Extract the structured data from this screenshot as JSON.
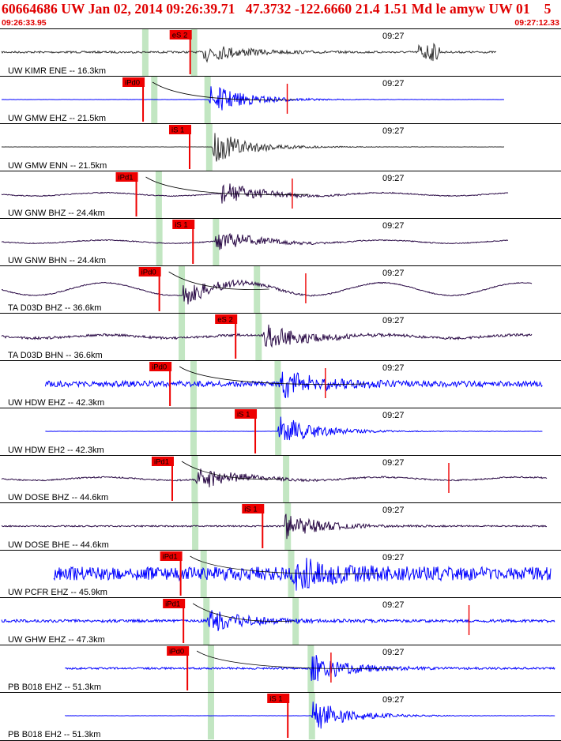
{
  "header": {
    "title": "60664686 UW Jan 02, 2014 09:26:39.71   47.3732 -122.6660 21.4 1.51 Md le amyw UW 01    5",
    "start_time": "09:26:33.95",
    "end_time": "09:27:12.33"
  },
  "minute_label": "09:27",
  "colors": {
    "header": "#e00000",
    "pick": "#ee0000",
    "highlight": "#c2e6c2",
    "trace_gray": "#333333",
    "trace_blue": "#0000ff",
    "trace_purple": "#2a0a46"
  },
  "traces": [
    {
      "label": "UW KIMR ENE -- 16.3km",
      "color": "gray",
      "pick": {
        "text": "eS 2",
        "t": 0.339
      },
      "highlights": [
        0.259,
        0.346
      ],
      "extent": [
        0.0,
        0.885
      ],
      "burst": 0.362,
      "amp": 0.22,
      "noise": 0.04,
      "swell": 0.0,
      "second": 0.765
    },
    {
      "label": "UW GMW EHZ -- 21.5km",
      "color": "blue",
      "pick": {
        "text": "iPd0",
        "t": 0.255
      },
      "highlights": [
        0.275,
        0.37
      ],
      "extent": [
        0.0,
        0.899
      ],
      "burst": 0.372,
      "amp": 0.34,
      "noise": 0.005,
      "swell": 0.0,
      "red_mark": 0.512
    },
    {
      "label": "UW GMW ENN -- 21.5km",
      "color": "gray",
      "pick": {
        "text": "iS 1",
        "t": 0.338
      },
      "highlights": [
        0.373
      ],
      "extent": [
        0.0,
        0.899
      ],
      "burst": 0.378,
      "amp": 0.36,
      "noise": 0.005,
      "swell": 0.0
    },
    {
      "label": "UW GNW BHZ -- 24.4km",
      "color": "purple",
      "pick": {
        "text": "iPd1",
        "t": 0.243
      },
      "highlights": [
        0.283
      ],
      "extent": [
        0.0,
        0.907
      ],
      "burst": 0.395,
      "amp": 0.25,
      "noise": 0.02,
      "swell": 0.05,
      "red_mark": 0.521
    },
    {
      "label": "UW GNW BHN -- 24.4km",
      "color": "purple",
      "pick": {
        "text": "iS 1",
        "t": 0.344
      },
      "highlights": [
        0.284,
        0.385
      ],
      "extent": [
        0.0,
        0.907
      ],
      "burst": 0.384,
      "amp": 0.24,
      "noise": 0.02,
      "swell": 0.05
    },
    {
      "label": "TA D03D BHZ -- 36.6km",
      "color": "purple",
      "pick": {
        "text": "iPd0",
        "t": 0.284
      },
      "highlights": [
        0.324,
        0.458
      ],
      "extent": [
        0.0,
        0.948
      ],
      "burst": 0.325,
      "amp": 0.25,
      "noise": 0.02,
      "swell": 0.2,
      "red_mark": 0.545
    },
    {
      "label": "TA D03D BHN -- 36.6km",
      "color": "purple",
      "pick": {
        "text": "eS 2",
        "t": 0.42
      },
      "highlights": [
        0.324,
        0.461
      ],
      "extent": [
        0.0,
        0.948
      ],
      "burst": 0.47,
      "amp": 0.28,
      "noise": 0.05,
      "swell": 0.05
    },
    {
      "label": "UW HDW EHZ -- 42.3km",
      "color": "blue",
      "pick": {
        "text": "iPd0",
        "t": 0.303
      },
      "highlights": [
        0.345,
        0.495
      ],
      "extent": [
        0.078,
        0.968
      ],
      "burst": 0.497,
      "amp": 0.3,
      "noise": 0.12,
      "swell": 0.0,
      "red_mark": 0.58
    },
    {
      "label": "UW HDW EH2 -- 42.3km",
      "color": "blue",
      "pick": {
        "text": "iS 1",
        "t": 0.455
      },
      "highlights": [
        0.345,
        0.496
      ],
      "extent": [
        0.078,
        0.968
      ],
      "burst": 0.496,
      "amp": 0.36,
      "noise": 0.005,
      "swell": 0.0
    },
    {
      "label": "UW DOSE BHZ -- 44.6km",
      "color": "purple",
      "pick": {
        "text": "iPd1",
        "t": 0.307
      },
      "highlights": [
        0.347,
        0.51
      ],
      "extent": [
        0.0,
        0.975
      ],
      "burst": 0.348,
      "amp": 0.25,
      "noise": 0.03,
      "swell": 0.05,
      "red_mark": 0.8
    },
    {
      "label": "UW DOSE BHE -- 44.6km",
      "color": "purple",
      "pick": {
        "text": "iS 1",
        "t": 0.468
      },
      "highlights": [
        0.348,
        0.513
      ],
      "extent": [
        0.0,
        0.975
      ],
      "burst": 0.508,
      "amp": 0.27,
      "noise": 0.03,
      "swell": 0.0
    },
    {
      "label": "UW PCFR EHZ -- 45.9km",
      "color": "blue",
      "pick": {
        "text": "iPd1",
        "t": 0.322
      },
      "highlights": [
        0.363,
        0.519
      ],
      "extent": [
        0.093,
        0.982
      ],
      "burst": 0.52,
      "amp": 0.3,
      "noise": 0.28,
      "swell": 0.0
    },
    {
      "label": "UW GHW EHZ -- 47.3km",
      "color": "blue",
      "pick": {
        "text": "iPd1",
        "t": 0.327
      },
      "highlights": [
        0.368,
        0.527
      ],
      "extent": [
        0.0,
        0.99
      ],
      "burst": 0.37,
      "amp": 0.25,
      "noise": 0.06,
      "swell": 0.0,
      "red_mark": 0.836
    },
    {
      "label": "PB B018 EHZ -- 51.3km",
      "color": "blue",
      "pick": {
        "text": "iPd0",
        "t": 0.334
      },
      "highlights": [
        0.376,
        0.554
      ],
      "extent": [
        0.113,
        0.99
      ],
      "burst": 0.555,
      "amp": 0.3,
      "noise": 0.04,
      "swell": 0.0,
      "red_mark": 0.59
    },
    {
      "label": "PB B018 EH2 -- 51.3km",
      "color": "blue",
      "pick": {
        "text": "iS 1",
        "t": 0.513
      },
      "highlights": [
        0.376,
        0.556
      ],
      "extent": [
        0.113,
        0.99
      ],
      "burst": 0.556,
      "amp": 0.35,
      "noise": 0.005,
      "swell": 0.0
    }
  ]
}
